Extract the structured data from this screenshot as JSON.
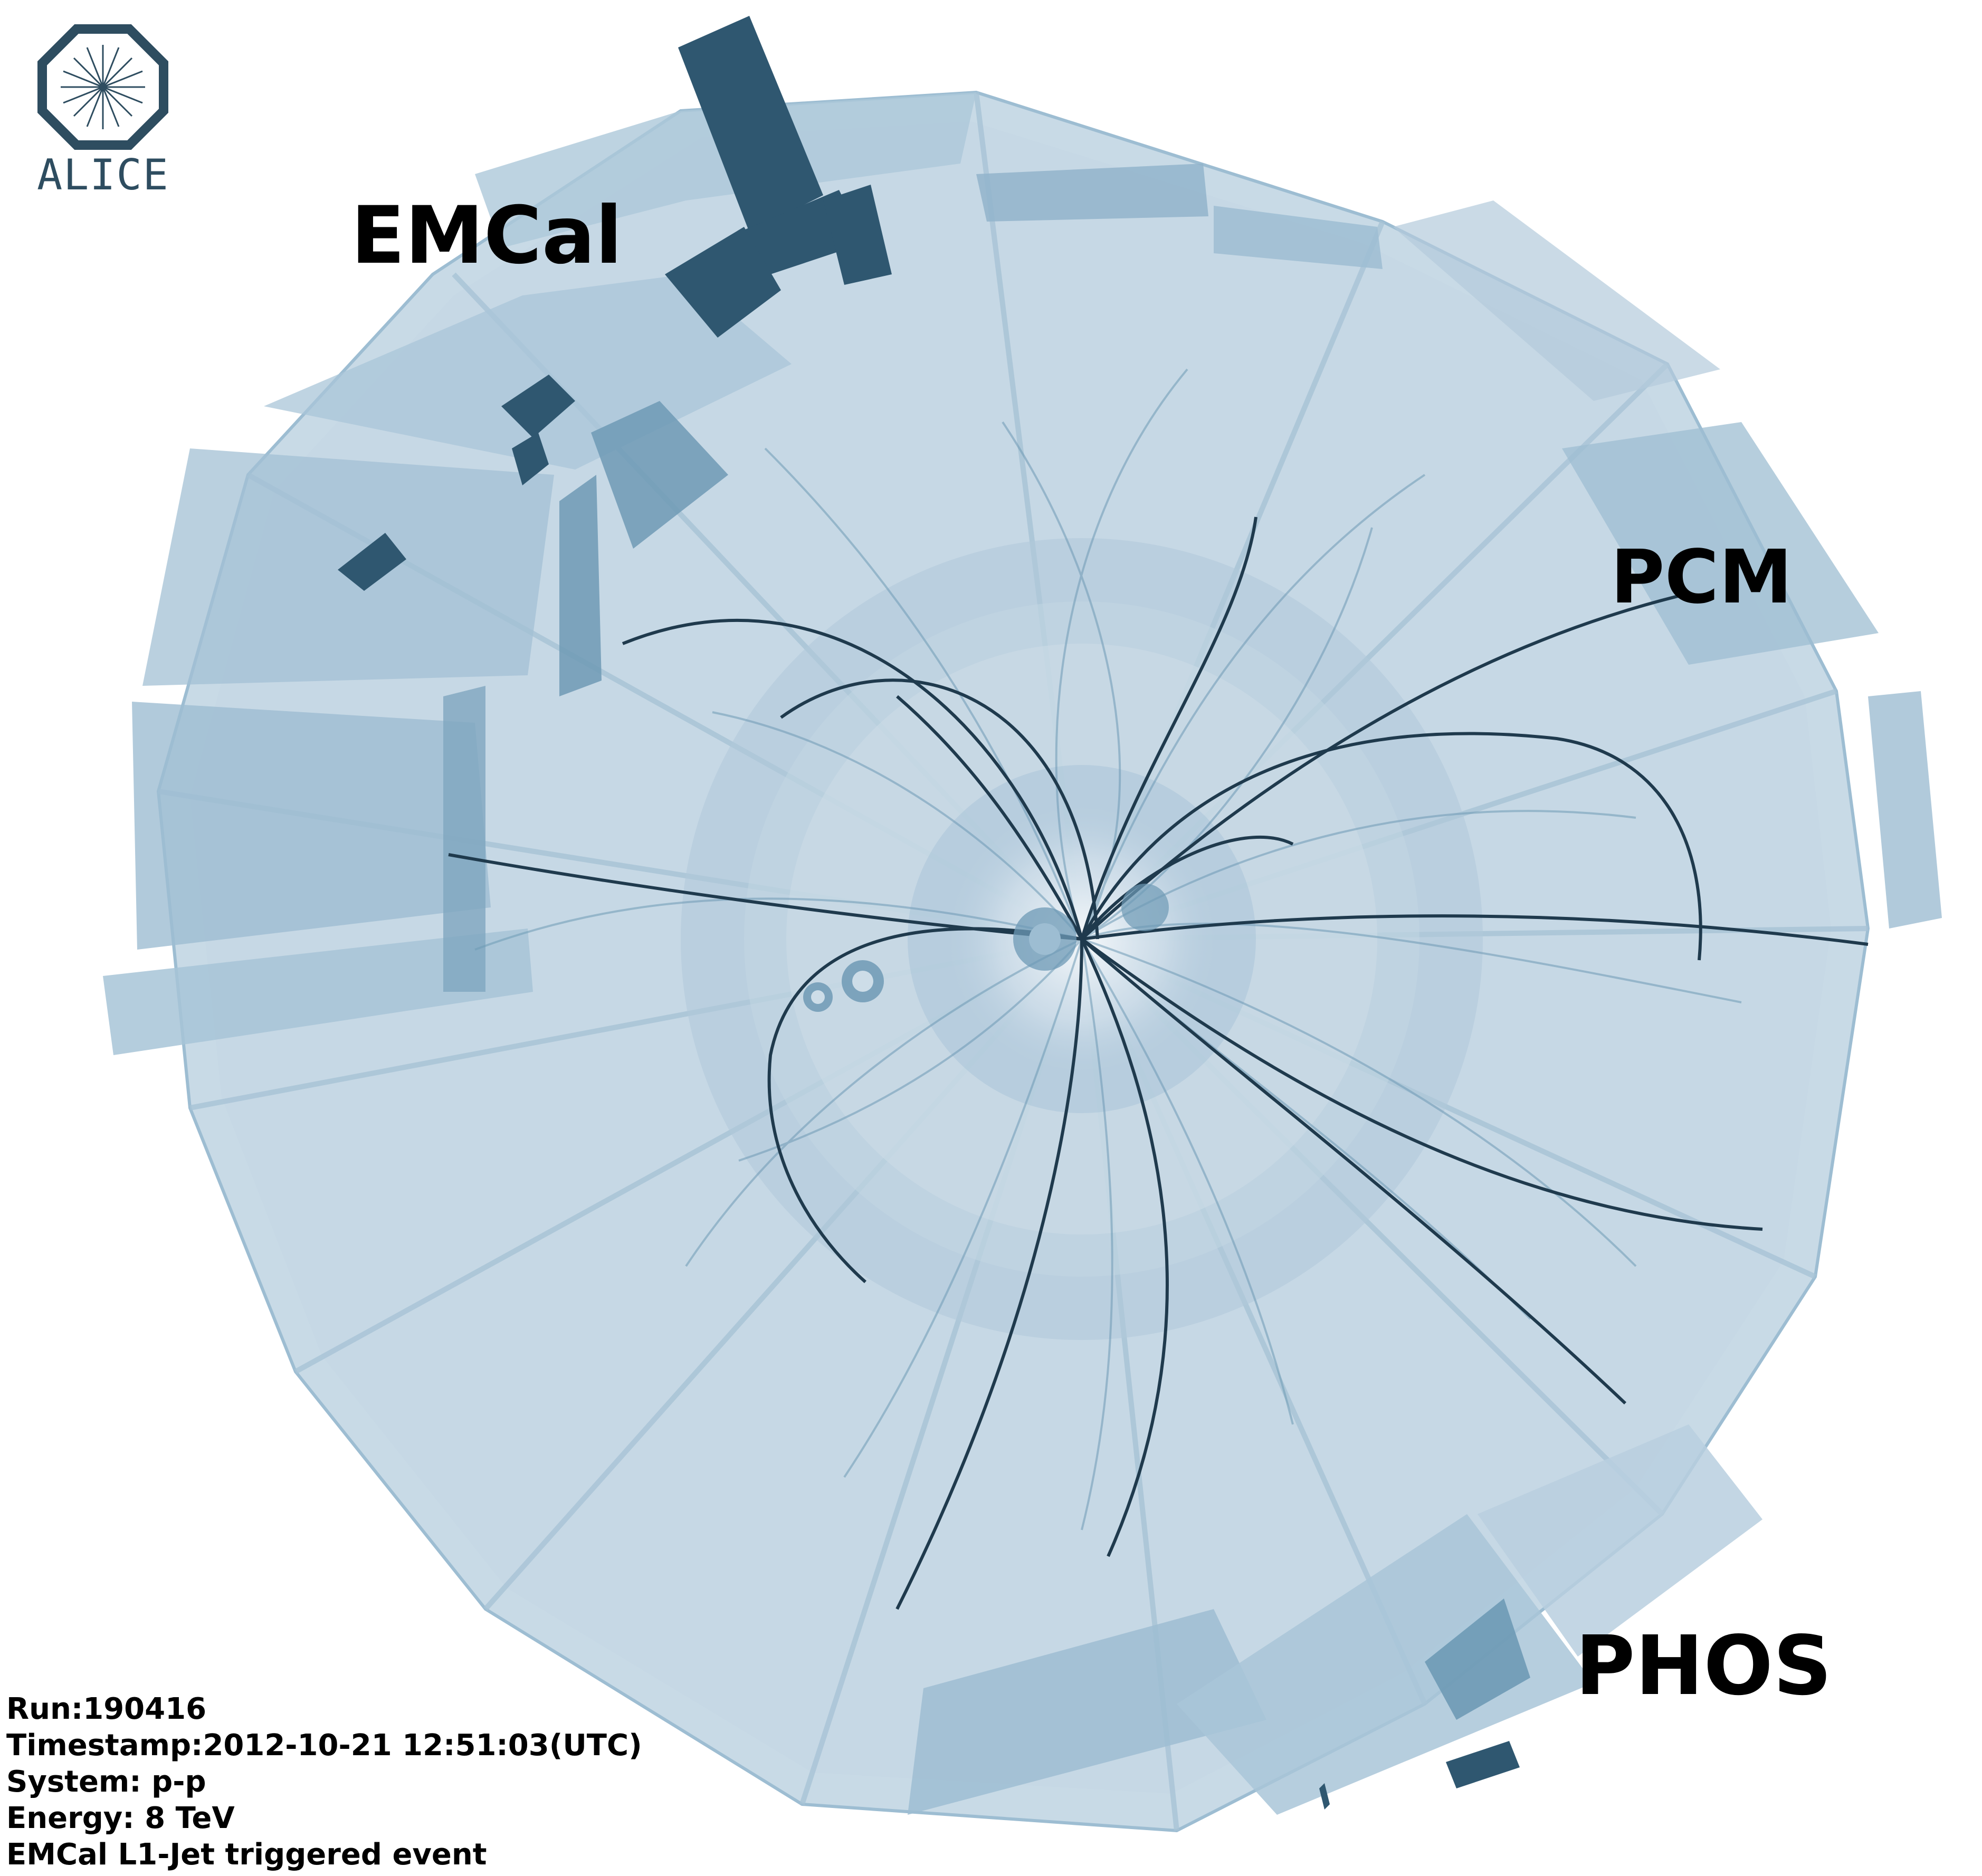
{
  "logo": {
    "text": "ALICE",
    "icon": "alice-octagon-logo-icon",
    "color": "#2e4d60"
  },
  "labels": {
    "emcal": "EMCal",
    "pcm": "PCM",
    "phos": "PHOS"
  },
  "event_info": {
    "run": "Run:190416",
    "timestamp": "Timestamp:2012-10-21 12:51:03(UTC)",
    "system": "System: p-p",
    "energy": "Energy: 8 TeV",
    "trigger": "EMCal L1-Jet triggered event"
  },
  "colors": {
    "detector_fill": "#9dbdd2",
    "detector_light": "#c9dbe7",
    "track_dark": "#1f3a4d",
    "track_light": "#6e9ab5",
    "module_dark": "#2f5770"
  }
}
